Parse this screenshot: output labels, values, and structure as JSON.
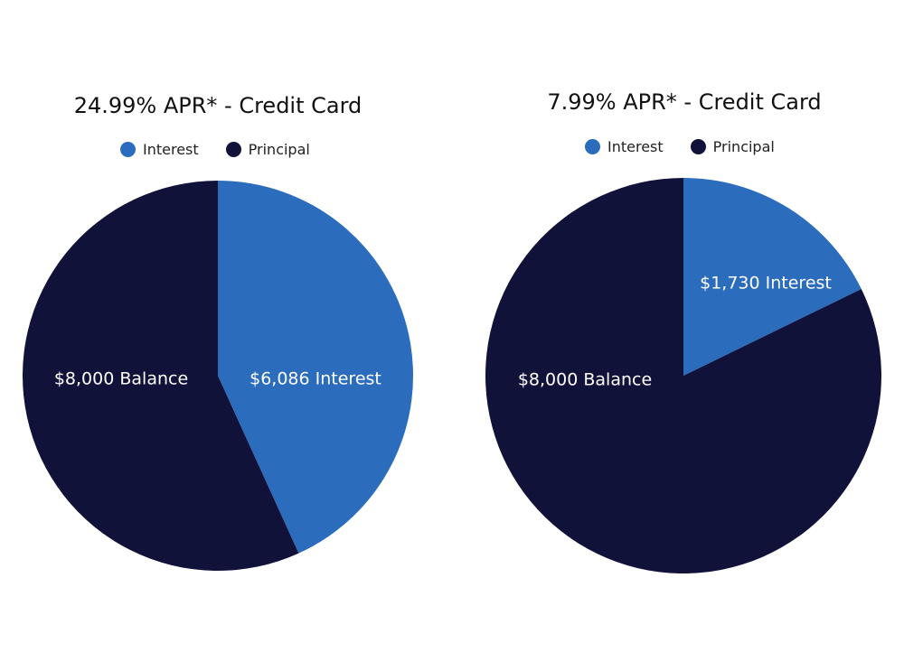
{
  "chart_data": [
    {
      "type": "pie",
      "title": "24.99% APR* - Credit Card",
      "legend": [
        "Interest",
        "Principal"
      ],
      "colors": {
        "Interest": "#2b6cbc",
        "Principal": "#11123a"
      },
      "slices": [
        {
          "name": "Interest",
          "value": 6086,
          "label": "$6,086 Interest"
        },
        {
          "name": "Principal",
          "value": 8000,
          "label": "$8,000 Balance"
        }
      ]
    },
    {
      "type": "pie",
      "title": "7.99% APR* - Credit Card",
      "legend": [
        "Interest",
        "Principal"
      ],
      "colors": {
        "Interest": "#2b6cbc",
        "Principal": "#11123a"
      },
      "slices": [
        {
          "name": "Interest",
          "value": 1730,
          "label": "$1,730 Interest"
        },
        {
          "name": "Principal",
          "value": 8000,
          "label": "$8,000 Balance"
        }
      ]
    }
  ]
}
